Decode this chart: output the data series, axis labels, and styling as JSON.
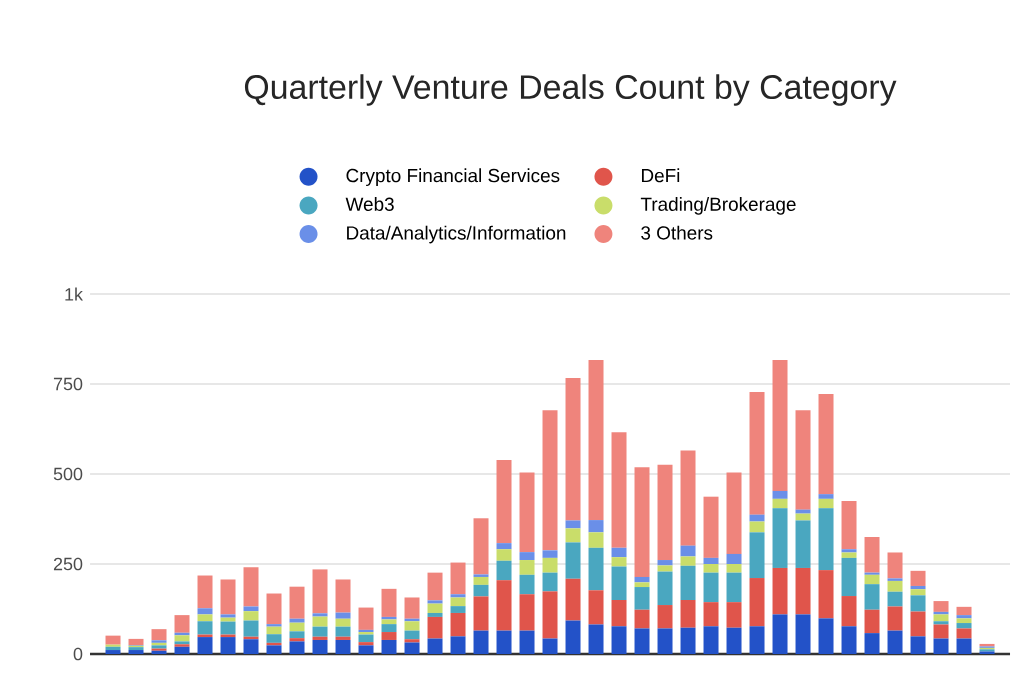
{
  "chart_data": {
    "type": "bar",
    "stacked": true,
    "title": "Quarterly Venture Deals Count by Category",
    "categories": [
      null,
      null,
      null,
      null,
      null,
      null,
      null,
      null,
      null,
      null,
      null,
      null,
      null,
      null,
      null,
      null,
      null,
      null,
      null,
      null,
      null,
      null,
      null,
      null,
      null,
      null,
      null,
      null,
      null,
      null,
      null,
      null,
      null,
      null,
      null,
      null,
      null,
      null,
      null
    ],
    "series": [
      {
        "name": "Crypto Financial Services",
        "color": "#2352c8",
        "values": [
          11,
          11,
          9,
          20,
          47,
          47,
          41,
          24,
          35,
          39,
          39,
          24,
          39,
          32,
          43,
          49,
          65,
          65,
          65,
          43,
          93,
          82,
          77,
          71,
          71,
          73,
          77,
          73,
          77,
          110,
          110,
          99,
          77,
          58,
          65,
          49,
          43,
          43,
          7
        ]
      },
      {
        "name": "DeFi",
        "color": "#e0554b",
        "values": [
          null,
          null,
          6,
          7,
          7,
          7,
          7,
          7,
          9,
          9,
          9,
          9,
          22,
          9,
          60,
          65,
          95,
          140,
          101,
          131,
          116,
          95,
          73,
          52,
          65,
          77,
          67,
          71,
          134,
          129,
          129,
          134,
          84,
          65,
          67,
          69,
          39,
          28,
          null
        ]
      },
      {
        "name": "Web3",
        "color": "#4aa7c0",
        "values": [
          9,
          8,
          9,
          8,
          37,
          36,
          45,
          24,
          19,
          28,
          28,
          21,
          22,
          24,
          11,
          19,
          32,
          54,
          54,
          52,
          101,
          118,
          93,
          63,
          93,
          95,
          82,
          82,
          127,
          166,
          132,
          172,
          106,
          71,
          41,
          45,
          9,
          15,
          6
        ]
      },
      {
        "name": "Trading/Brokerage",
        "color": "#c9dd6a",
        "values": [
          6,
          4,
          7,
          17,
          19,
          11,
          26,
          21,
          24,
          28,
          22,
          7,
          13,
          26,
          26,
          24,
          22,
          32,
          41,
          41,
          39,
          43,
          26,
          13,
          17,
          26,
          24,
          24,
          30,
          26,
          19,
          26,
          15,
          26,
          30,
          17,
          19,
          13,
          4
        ]
      },
      {
        "name": "Data/Analytics/Information",
        "color": "#6a8fe8",
        "values": [
          null,
          2,
          7,
          7,
          17,
          9,
          13,
          7,
          11,
          9,
          17,
          6,
          7,
          7,
          9,
          9,
          7,
          17,
          22,
          21,
          22,
          34,
          26,
          15,
          15,
          30,
          17,
          28,
          19,
          22,
          11,
          13,
          9,
          6,
          7,
          9,
          7,
          9,
          4
        ]
      },
      {
        "name": "3 Others",
        "color": "#ef847c",
        "values": [
          25,
          17,
          31,
          49,
          91,
          97,
          109,
          85,
          89,
          122,
          92,
          62,
          78,
          59,
          77,
          88,
          156,
          231,
          221,
          389,
          396,
          445,
          321,
          305,
          265,
          264,
          170,
          226,
          341,
          364,
          276,
          278,
          134,
          99,
          72,
          42,
          30,
          23,
          7
        ]
      }
    ],
    "ylim": [
      0,
      1000
    ],
    "yticks": [
      0,
      250,
      500,
      750,
      {
        "value": 1000,
        "label": "1k"
      }
    ],
    "grid": "y",
    "legend": "top",
    "tick_labels": "y"
  }
}
